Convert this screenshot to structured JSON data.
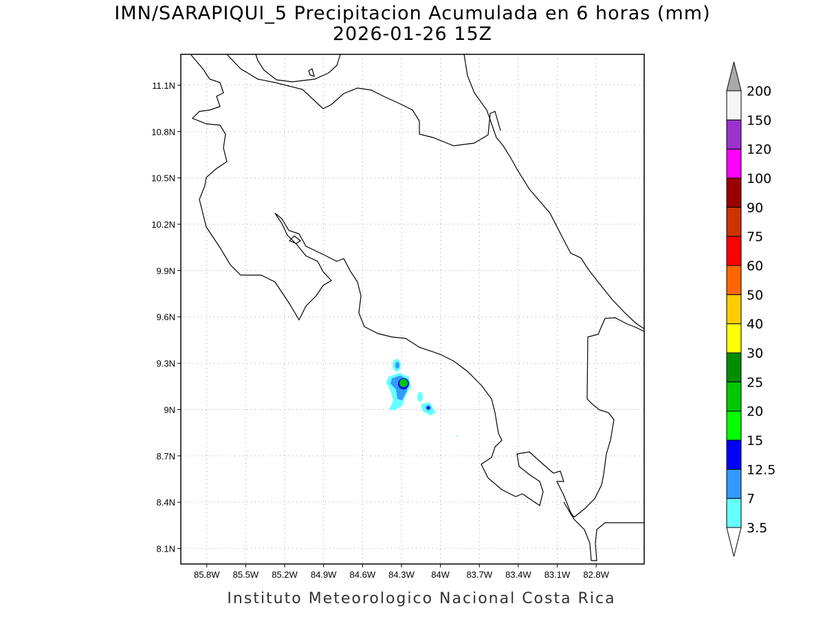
{
  "title": "IMN/SARAPIQUI_5 Precipitacion Acumulada en 6 horas (mm)",
  "subtitle": "2026-01-26 15Z",
  "footer": "Instituto Meteorologico Nacional Costa Rica",
  "map": {
    "xlim": [
      -86.0,
      -82.43
    ],
    "ylim": [
      8.0,
      11.3
    ],
    "xticks": [
      {
        "value": -85.8,
        "label": "85.8W"
      },
      {
        "value": -85.5,
        "label": "85.5W"
      },
      {
        "value": -85.2,
        "label": "85.2W"
      },
      {
        "value": -84.9,
        "label": "84.9W"
      },
      {
        "value": -84.6,
        "label": "84.6W"
      },
      {
        "value": -84.3,
        "label": "84.3W"
      },
      {
        "value": -84.0,
        "label": "84W"
      },
      {
        "value": -83.7,
        "label": "83.7W"
      },
      {
        "value": -83.4,
        "label": "83.4W"
      },
      {
        "value": -83.1,
        "label": "83.1W"
      },
      {
        "value": -82.8,
        "label": "82.8W"
      }
    ],
    "yticks": [
      {
        "value": 8.1,
        "label": "8.1N"
      },
      {
        "value": 8.4,
        "label": "8.4N"
      },
      {
        "value": 8.7,
        "label": "8.7N"
      },
      {
        "value": 9.0,
        "label": "9N"
      },
      {
        "value": 9.3,
        "label": "9.3N"
      },
      {
        "value": 9.6,
        "label": "9.6N"
      },
      {
        "value": 9.9,
        "label": "9.9N"
      },
      {
        "value": 10.2,
        "label": "10.2N"
      },
      {
        "value": 10.5,
        "label": "10.5N"
      },
      {
        "value": 10.8,
        "label": "10.8N"
      },
      {
        "value": 11.1,
        "label": "11.1N"
      }
    ]
  },
  "colorbar": {
    "levels": [
      3.5,
      7,
      12.5,
      15,
      20,
      25,
      30,
      40,
      50,
      60,
      75,
      90,
      100,
      120,
      150,
      200
    ],
    "colors": [
      "#66ffff",
      "#3399ff",
      "#0000ff",
      "#00ff00",
      "#00c800",
      "#008c00",
      "#ffff00",
      "#ffcc00",
      "#ff6600",
      "#ff0000",
      "#cc3300",
      "#990000",
      "#ff00ff",
      "#9933cc",
      "#f5f5f5"
    ],
    "under_color": "#ffffff",
    "over_color": "#aaaaaa"
  }
}
